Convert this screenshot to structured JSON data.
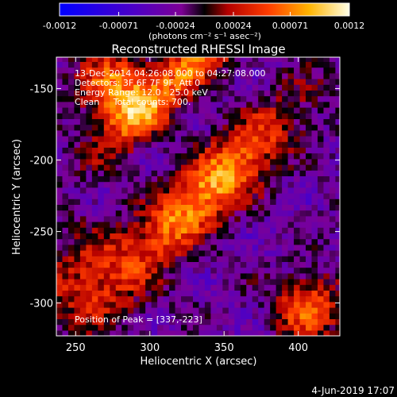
{
  "chart_data": {
    "type": "heatmap",
    "title": "Reconstructed RHESSI Image",
    "xlabel": "Heliocentric X (arcsec)",
    "ylabel": "Heliocentric Y (arcsec)",
    "xlim": [
      237,
      428
    ],
    "ylim": [
      -323,
      -128
    ],
    "xticks": [
      250,
      300,
      350,
      400
    ],
    "yticks": [
      -150,
      -200,
      -250,
      -300
    ],
    "colorbar": {
      "min": -0.0012,
      "max": 0.0012,
      "ticks": [
        "-0.0012",
        "-0.00071",
        "-0.00024",
        "0.00024",
        "0.00071",
        "0.0012"
      ],
      "unit_label": "(photons cm⁻² s⁻¹ asec⁻²)"
    },
    "annotations": [
      "13-Dec-2014 04:26:08.000 to 04:27:08.000",
      "Detectors: 3F 6F 7F 9F, Att 0",
      "Energy Range: 12.0 - 25.0 keV",
      "Clean     Total counts: 700."
    ],
    "peak_label": "Position of Peak = [337,-223]",
    "peak": [
      337,
      -223
    ]
  },
  "footer": {
    "date": "4-Jun-2019 17:07"
  }
}
